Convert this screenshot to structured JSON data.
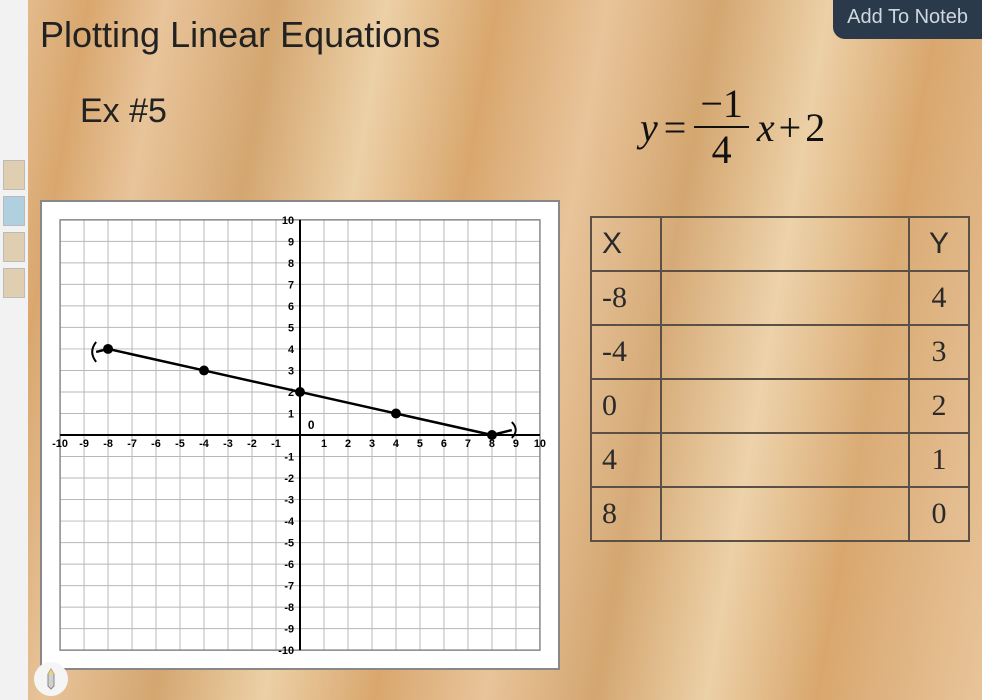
{
  "header": {
    "title": "Plotting Linear Equations",
    "example_label": "Ex #5",
    "add_to_notebook": "Add To Noteb"
  },
  "equation": {
    "lhs": "y",
    "equals": "=",
    "numerator": "−1",
    "denominator": "4",
    "variable": "x",
    "operator": "+",
    "constant": "2"
  },
  "graph": {
    "type": "line",
    "background_color": "#ffffff",
    "grid_color": "#b8b8b8",
    "axis_color": "#000000",
    "xlim": [
      -10,
      10
    ],
    "ylim": [
      -10,
      10
    ],
    "tick_step": 1,
    "x_ticks": [
      "-10",
      "-9",
      "-8",
      "-7",
      "-6",
      "-5",
      "-4",
      "-3",
      "-2",
      "-1",
      "",
      "1",
      "2",
      "3",
      "4",
      "5",
      "6",
      "7",
      "8",
      "9",
      "10"
    ],
    "y_ticks_pos": [
      "10",
      "9",
      "8",
      "7",
      "6",
      "5",
      "4",
      "3",
      "2",
      "1"
    ],
    "y_ticks_neg": [
      "-1",
      "-2",
      "-3",
      "-4",
      "-5",
      "-6",
      "-7",
      "-8",
      "-9",
      "-10"
    ],
    "origin_label": "0",
    "points": [
      {
        "x": -8,
        "y": 4
      },
      {
        "x": -4,
        "y": 3
      },
      {
        "x": 0,
        "y": 2
      },
      {
        "x": 4,
        "y": 1
      },
      {
        "x": 8,
        "y": 0
      }
    ],
    "line_color": "#000000",
    "line_width": 2.5,
    "point_radius": 5,
    "point_color": "#000000",
    "tick_label_fontsize": 11
  },
  "table": {
    "headers": {
      "x": "X",
      "y": "Y"
    },
    "rows": [
      {
        "x": "-8",
        "y": "4"
      },
      {
        "x": "-4",
        "y": "3"
      },
      {
        "x": "0",
        "y": "2"
      },
      {
        "x": "4",
        "y": "1"
      },
      {
        "x": "8",
        "y": "0"
      }
    ],
    "border_color": "#5a5046",
    "handwriting_color": "#2a2a2a",
    "font_family": "Comic Sans MS"
  },
  "colors": {
    "wood_light": "#e8c49a",
    "wood_dark": "#d4a670",
    "header_pill_bg": "#2a3a4a",
    "header_pill_text": "#cfd8e0"
  }
}
